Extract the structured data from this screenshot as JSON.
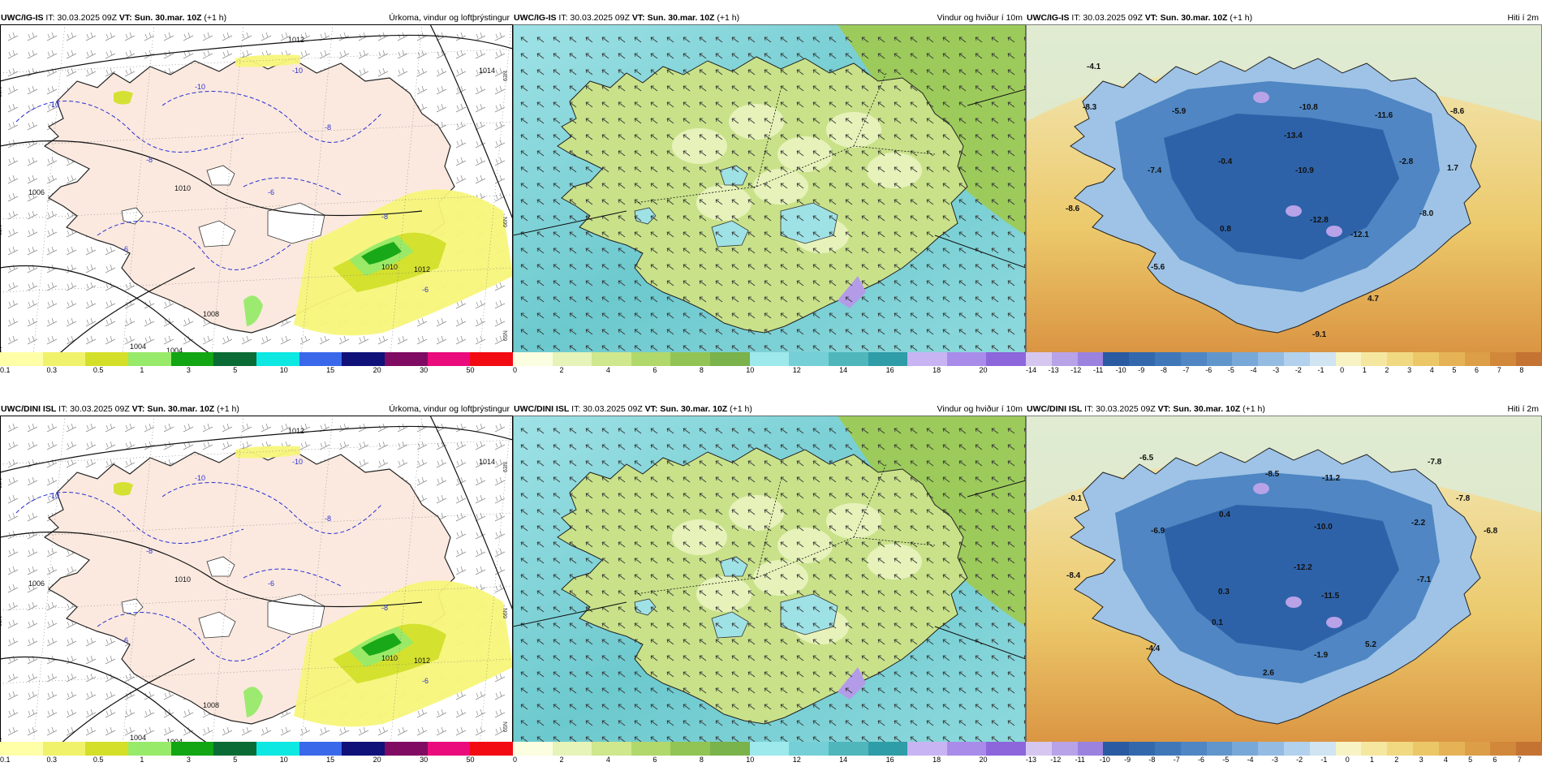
{
  "rows": [
    {
      "run_label": "UWC/IG-IS",
      "panels": [
        {
          "type": "precip",
          "model": "UWC/IG-IS",
          "it_label": "IT: 30.03.2025 09Z",
          "vt_prefix": "VT:",
          "vt_value": "Sun. 30.mar. 10Z",
          "lead": "(+1 h)",
          "title": "Úrkoma, vindur og loftþrýstingur",
          "isobars": [
            "1012",
            "1014",
            "1010",
            "1008",
            "1006",
            "1004",
            "1004",
            "1012",
            "1010"
          ],
          "temp_contours": [
            "-10",
            "-10",
            "-10",
            "-8",
            "-8",
            "-8",
            "-6",
            "-6",
            "-6"
          ],
          "lat_labels": [
            "66N",
            "65N",
            "64N",
            "63N",
            "66N",
            "65N"
          ]
        },
        {
          "type": "wind",
          "model": "UWC/IG-IS",
          "it_label": "IT: 30.03.2025 09Z",
          "vt_prefix": "VT:",
          "vt_value": "Sun. 30.mar. 10Z",
          "lead": "(+1 h)",
          "title": "Vindur og hviður í 10m"
        },
        {
          "type": "temp",
          "model": "UWC/IG-IS",
          "it_label": "IT: 30.03.2025 09Z",
          "vt_prefix": "VT:",
          "vt_value": "Sun. 30.mar. 10Z",
          "lead": "(+1 h)",
          "title": "Hiti í 2m",
          "values": [
            "-4.1",
            "-8.3",
            "-5.9",
            "-10.8",
            "-11.6",
            "-8.6",
            "-13.4",
            "-7.4",
            "-0.4",
            "-10.9",
            "-2.8",
            "1.7",
            "-8.6",
            "0.8",
            "-12.8",
            "-12.1",
            "-8.0",
            "-5.6",
            "4.7",
            "-9.1"
          ]
        }
      ]
    },
    {
      "run_label": "UWC/DINI ISL",
      "panels": [
        {
          "type": "precip",
          "model": "UWC/DINI ISL",
          "it_label": "IT: 30.03.2025 09Z",
          "vt_prefix": "VT:",
          "vt_value": "Sun. 30.mar. 10Z",
          "lead": "(+1 h)",
          "title": "Úrkoma, vindur og loftþrýstingur",
          "isobars": [
            "1012",
            "1014",
            "1010",
            "1008",
            "1006",
            "1004",
            "1004",
            "1012",
            "1010"
          ],
          "temp_contours": [
            "-10",
            "-10",
            "-10",
            "-8",
            "-8",
            "-8",
            "-6",
            "-6",
            "-6"
          ],
          "lat_labels": [
            "66N",
            "65N",
            "64N",
            "63N",
            "66N",
            "65N"
          ]
        },
        {
          "type": "wind",
          "model": "UWC/DINI ISL",
          "it_label": "IT: 30.03.2025 09Z",
          "vt_prefix": "VT:",
          "vt_value": "Sun. 30.mar. 10Z",
          "lead": "(+1 h)",
          "title": "Vindur og hviður í 10m"
        },
        {
          "type": "temp",
          "model": "UWC/DINI ISL",
          "it_label": "IT: 30.03.2025 09Z",
          "vt_prefix": "VT:",
          "vt_value": "Sun. 30.mar. 10Z",
          "lead": "(+1 h)",
          "title": "Hiti í 2m",
          "values": [
            "-6.5",
            "-0.1",
            "-8.5",
            "-11.2",
            "-7.8",
            "-6.9",
            "0.4",
            "-10.0",
            "-2.2",
            "-7.8",
            "-6.8",
            "-8.4",
            "-12.2",
            "-7.1",
            "0.3",
            "-11.5",
            "0.1",
            "-4.4",
            "5.2",
            "-1.9",
            "2.6"
          ]
        }
      ]
    }
  ],
  "legends": {
    "precip": {
      "colors": [
        "#ffffa8",
        "#f1f26b",
        "#d4df29",
        "#98ea6a",
        "#12a514",
        "#0b6b34",
        "#0de8e2",
        "#3a68ea",
        "#101179",
        "#7f0c62",
        "#ea0c7d",
        "#f20b13"
      ],
      "ticks": [
        "0.1",
        "0.3",
        "0.5",
        "1",
        "3",
        "5",
        "10",
        "15",
        "20",
        "30",
        "50"
      ]
    },
    "wind": {
      "colors": [
        "#fbfee0",
        "#e6f3b9",
        "#cfe78d",
        "#b1d86b",
        "#91c454",
        "#7ab24b",
        "#9de9ec",
        "#74d0d6",
        "#4fb6bc",
        "#2e9da7",
        "#c8b4f3",
        "#a98cea",
        "#8d66dc"
      ],
      "ticks": [
        "0",
        "2",
        "4",
        "6",
        "8",
        "10",
        "12",
        "14",
        "16",
        "18",
        "20"
      ]
    },
    "temp": {
      "colors": [
        "#d6c7f1",
        "#b8a2e8",
        "#9b82df",
        "#2a5aa1",
        "#3368ad",
        "#3f77b9",
        "#4f86c3",
        "#6196cc",
        "#78a8d7",
        "#94bce2",
        "#b1d1ec",
        "#d0e4f2",
        "#f7f3c4",
        "#f5e7a0",
        "#f1d982",
        "#ecc768",
        "#e5b355",
        "#dc9e46",
        "#d1883a",
        "#c47333"
      ],
      "ticks_top": [
        "-14",
        "-13",
        "-12",
        "-11",
        "-10",
        "-9",
        "-8",
        "-7",
        "-6",
        "-5",
        "-4",
        "-3",
        "-2",
        "-1",
        "0",
        "1",
        "2",
        "3",
        "4",
        "5",
        "6",
        "7",
        "8"
      ],
      "ticks_bottom": [
        "-13",
        "-12",
        "-11",
        "-10",
        "-9",
        "-8",
        "-7",
        "-6",
        "-5",
        "-4",
        "-3",
        "-2",
        "-1",
        "0",
        "1",
        "2",
        "3",
        "4",
        "5",
        "6",
        "7"
      ]
    }
  }
}
